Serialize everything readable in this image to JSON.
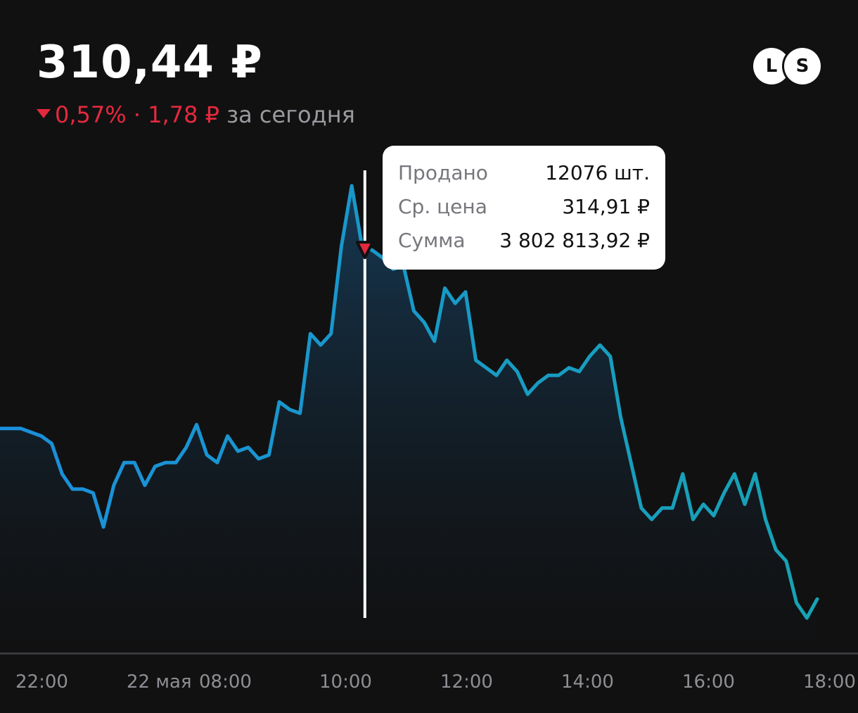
{
  "header": {
    "price": "310,44 ₽",
    "change_percent": "0,57%",
    "separator": "·",
    "change_abs": "1,78 ₽",
    "period": "за сегодня"
  },
  "toggles": {
    "l_label": "L",
    "s_label": "S"
  },
  "tooltip": {
    "rows": [
      {
        "key": "Продано",
        "value": "12076 шт."
      },
      {
        "key": "Ср. цена",
        "value": "314,91 ₽"
      },
      {
        "key": "Сумма",
        "value": "3 802 813,92 ₽"
      }
    ]
  },
  "colors": {
    "line_start": "#1a8fdc",
    "line_end": "#17a3b4",
    "negative": "#e5293d",
    "background": "#111112"
  },
  "chart_data": {
    "type": "area",
    "x_ticks": [
      "22:00",
      "22 мая",
      "08:00",
      "10:00",
      "12:00",
      "14:00",
      "16:00",
      "18:00"
    ],
    "y_relative_to_price": true,
    "values": [
      309.8,
      309.8,
      309.8,
      309.7,
      309.6,
      309.4,
      308.6,
      308.2,
      308.2,
      308.1,
      307.2,
      308.3,
      308.9,
      308.9,
      308.3,
      308.8,
      308.9,
      308.9,
      309.3,
      309.9,
      309.1,
      308.9,
      309.6,
      309.2,
      309.3,
      309.0,
      309.1,
      310.5,
      310.3,
      310.2,
      312.3,
      312.0,
      312.3,
      314.6,
      316.2,
      314.6,
      314.5,
      314.3,
      314.0,
      314.1,
      312.9,
      312.6,
      312.1,
      313.5,
      313.1,
      313.4,
      311.6,
      311.4,
      311.2,
      311.6,
      311.3,
      310.7,
      311.0,
      311.2,
      311.2,
      311.4,
      311.3,
      311.7,
      312.0,
      311.7,
      310.1,
      308.9,
      307.7,
      307.4,
      307.7,
      307.7,
      308.6,
      307.4,
      307.8,
      307.5,
      308.1,
      308.6,
      307.8,
      308.6,
      307.4,
      306.6,
      306.3,
      305.2,
      304.8,
      305.3
    ]
  },
  "marker": {
    "type": "sell",
    "index": 35,
    "price": 314.91
  }
}
